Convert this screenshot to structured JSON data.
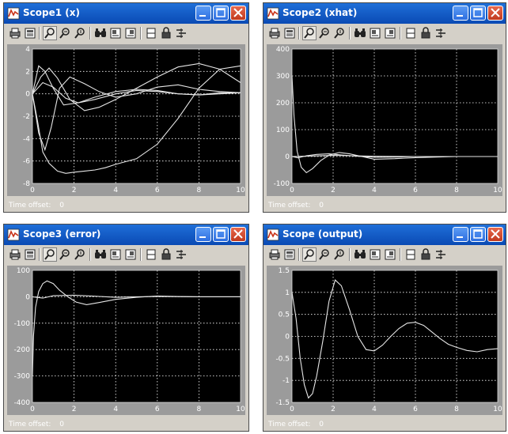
{
  "scopes": [
    {
      "title": "Scope1 (x)",
      "time_offset_label": "Time offset:",
      "time_offset_value": "0",
      "chart_data": {
        "type": "line",
        "xlim": [
          0,
          10
        ],
        "ylim": [
          -8,
          4
        ],
        "xticks": [
          0,
          2,
          4,
          6,
          8,
          10
        ],
        "yticks": [
          -8,
          -6,
          -4,
          -2,
          0,
          2,
          4
        ],
        "grid": true,
        "series": [
          {
            "x": [
              0,
              0.25,
              0.5,
              0.8,
              1.2,
              1.6,
              2,
              2.5,
              3,
              3.5,
              4,
              5,
              6,
              7,
              8,
              9,
              10
            ],
            "y": [
              0,
              -2.5,
              -5.2,
              -6.2,
              -6.9,
              -7.1,
              -7.0,
              -6.9,
              -6.8,
              -6.6,
              -6.3,
              -5.8,
              -4.5,
              -2.2,
              0.5,
              2.2,
              2.5
            ]
          },
          {
            "x": [
              0,
              0.3,
              0.6,
              0.9,
              1.3,
              1.8,
              2.5,
              3.2,
              4,
              5,
              6,
              7,
              8,
              9,
              10
            ],
            "y": [
              0,
              -3.5,
              -5.0,
              -3.0,
              0.5,
              1.5,
              0.9,
              0.2,
              -0.3,
              0.0,
              0.6,
              0.8,
              0.4,
              0.2,
              0.1
            ]
          },
          {
            "x": [
              0,
              0.3,
              0.6,
              1.0,
              1.5,
              2.2,
              3,
              4,
              5,
              6,
              7,
              8,
              9,
              10
            ],
            "y": [
              0,
              2.5,
              2.0,
              0.5,
              -1.0,
              -0.8,
              -0.3,
              0.2,
              0.4,
              0.3,
              0.0,
              -0.1,
              0.1,
              0.1
            ]
          },
          {
            "x": [
              0,
              0.4,
              0.8,
              1.2,
              1.8,
              2.5,
              3.2,
              4,
              5,
              6,
              7,
              8,
              9,
              10
            ],
            "y": [
              0,
              1.5,
              2.3,
              1.4,
              -0.5,
              -1.5,
              -1.2,
              -0.5,
              0.5,
              1.5,
              2.4,
              2.7,
              2.2,
              1.0
            ]
          },
          {
            "x": [
              0,
              0.5,
              1.0,
              1.6,
              2.2,
              3,
              4,
              5,
              6,
              7,
              8,
              9,
              10
            ],
            "y": [
              0,
              1.0,
              0.6,
              -0.4,
              -0.8,
              -0.5,
              0.0,
              0.3,
              0.2,
              0.0,
              -0.1,
              0.0,
              0.1
            ]
          }
        ]
      }
    },
    {
      "title": "Scope2 (xhat)",
      "time_offset_label": "Time offset:",
      "time_offset_value": "0",
      "chart_data": {
        "type": "line",
        "xlim": [
          0,
          10
        ],
        "ylim": [
          -100,
          400
        ],
        "xticks": [
          0,
          2,
          4,
          6,
          8,
          10
        ],
        "yticks": [
          -100,
          0,
          100,
          200,
          300,
          400
        ],
        "grid": true,
        "series": [
          {
            "x": [
              0,
              0.1,
              0.25,
              0.45,
              0.7,
              1.0,
              1.4,
              1.8,
              2.3,
              2.8,
              3.4,
              4,
              5,
              6,
              7,
              8,
              9,
              10
            ],
            "y": [
              300,
              150,
              20,
              -40,
              -60,
              -45,
              -15,
              5,
              15,
              10,
              0,
              -10,
              -8,
              -4,
              -2,
              0,
              0,
              0
            ]
          },
          {
            "x": [
              0,
              0.3,
              0.7,
              1.2,
              1.8,
              2.4,
              3,
              4,
              5,
              6,
              8,
              10
            ],
            "y": [
              0,
              -5,
              3,
              8,
              10,
              6,
              2,
              -3,
              -2,
              0,
              0,
              0
            ]
          },
          {
            "x": [
              0,
              1,
              2,
              3,
              4,
              6,
              8,
              10
            ],
            "y": [
              0,
              2,
              4,
              3,
              1,
              0,
              0,
              0
            ]
          }
        ]
      }
    },
    {
      "title": "Scope3 (error)",
      "time_offset_label": "Time offset:",
      "time_offset_value": "0",
      "chart_data": {
        "type": "line",
        "xlim": [
          0,
          10
        ],
        "ylim": [
          -400,
          100
        ],
        "xticks": [
          0,
          2,
          4,
          6,
          8,
          10
        ],
        "yticks": [
          -400,
          -300,
          -200,
          -100,
          0,
          100
        ],
        "grid": true,
        "series": [
          {
            "x": [
              0,
              0.05,
              0.15,
              0.3,
              0.5,
              0.7,
              1.0,
              1.3,
              1.7,
              2.1,
              2.6,
              3.2,
              4,
              5,
              6,
              7,
              8,
              9,
              10
            ],
            "y": [
              -300,
              -150,
              -40,
              20,
              50,
              60,
              50,
              25,
              0,
              -20,
              -30,
              -22,
              -10,
              -2,
              3,
              1,
              0,
              0,
              0
            ]
          },
          {
            "x": [
              0,
              0.5,
              1,
              2,
              3,
              4,
              5,
              6,
              8,
              10
            ],
            "y": [
              0,
              -5,
              4,
              6,
              2,
              -2,
              0,
              1,
              0,
              0
            ]
          }
        ]
      }
    },
    {
      "title": "Scope (output)",
      "time_offset_label": "Time offset:",
      "time_offset_value": "0",
      "chart_data": {
        "type": "line",
        "xlim": [
          0,
          10
        ],
        "ylim": [
          -1.5,
          1.5
        ],
        "xticks": [
          0,
          2,
          4,
          6,
          8,
          10
        ],
        "yticks": [
          -1.5,
          -1,
          -0.5,
          0,
          0.5,
          1,
          1.5
        ],
        "grid": true,
        "series": [
          {
            "x": [
              0,
              0.2,
              0.4,
              0.6,
              0.8,
              1.0,
              1.2,
              1.5,
              1.8,
              2.1,
              2.4,
              2.8,
              3.2,
              3.6,
              4.0,
              4.4,
              4.8,
              5.2,
              5.6,
              6.0,
              6.4,
              6.8,
              7.2,
              7.6,
              8.0,
              8.5,
              9.0,
              9.5,
              10
            ],
            "y": [
              1.0,
              0.4,
              -0.5,
              -1.1,
              -1.4,
              -1.3,
              -0.9,
              -0.1,
              0.8,
              1.28,
              1.15,
              0.6,
              0.0,
              -0.3,
              -0.33,
              -0.2,
              0.0,
              0.18,
              0.3,
              0.32,
              0.25,
              0.1,
              -0.05,
              -0.18,
              -0.25,
              -0.32,
              -0.35,
              -0.3,
              -0.28
            ]
          }
        ]
      }
    }
  ],
  "colors": {
    "title_bar": "#0a4ab4",
    "window_bg": "#d4d0c8",
    "plot_frame": "#9b9b9b",
    "plot_bg": "#000000",
    "trace": "#e6e6e6",
    "grid": "#ffffff"
  },
  "icons": [
    "matlab-icon",
    "print-icon",
    "parameters-icon",
    "zoom-icon",
    "zoom-x-icon",
    "zoom-y-icon",
    "autoscale-icon",
    "save-axes-icon",
    "restore-axes-icon",
    "floating-scope-icon",
    "lock-axes-icon",
    "signal-selector-icon",
    "minimize-icon",
    "maximize-icon",
    "close-icon"
  ]
}
